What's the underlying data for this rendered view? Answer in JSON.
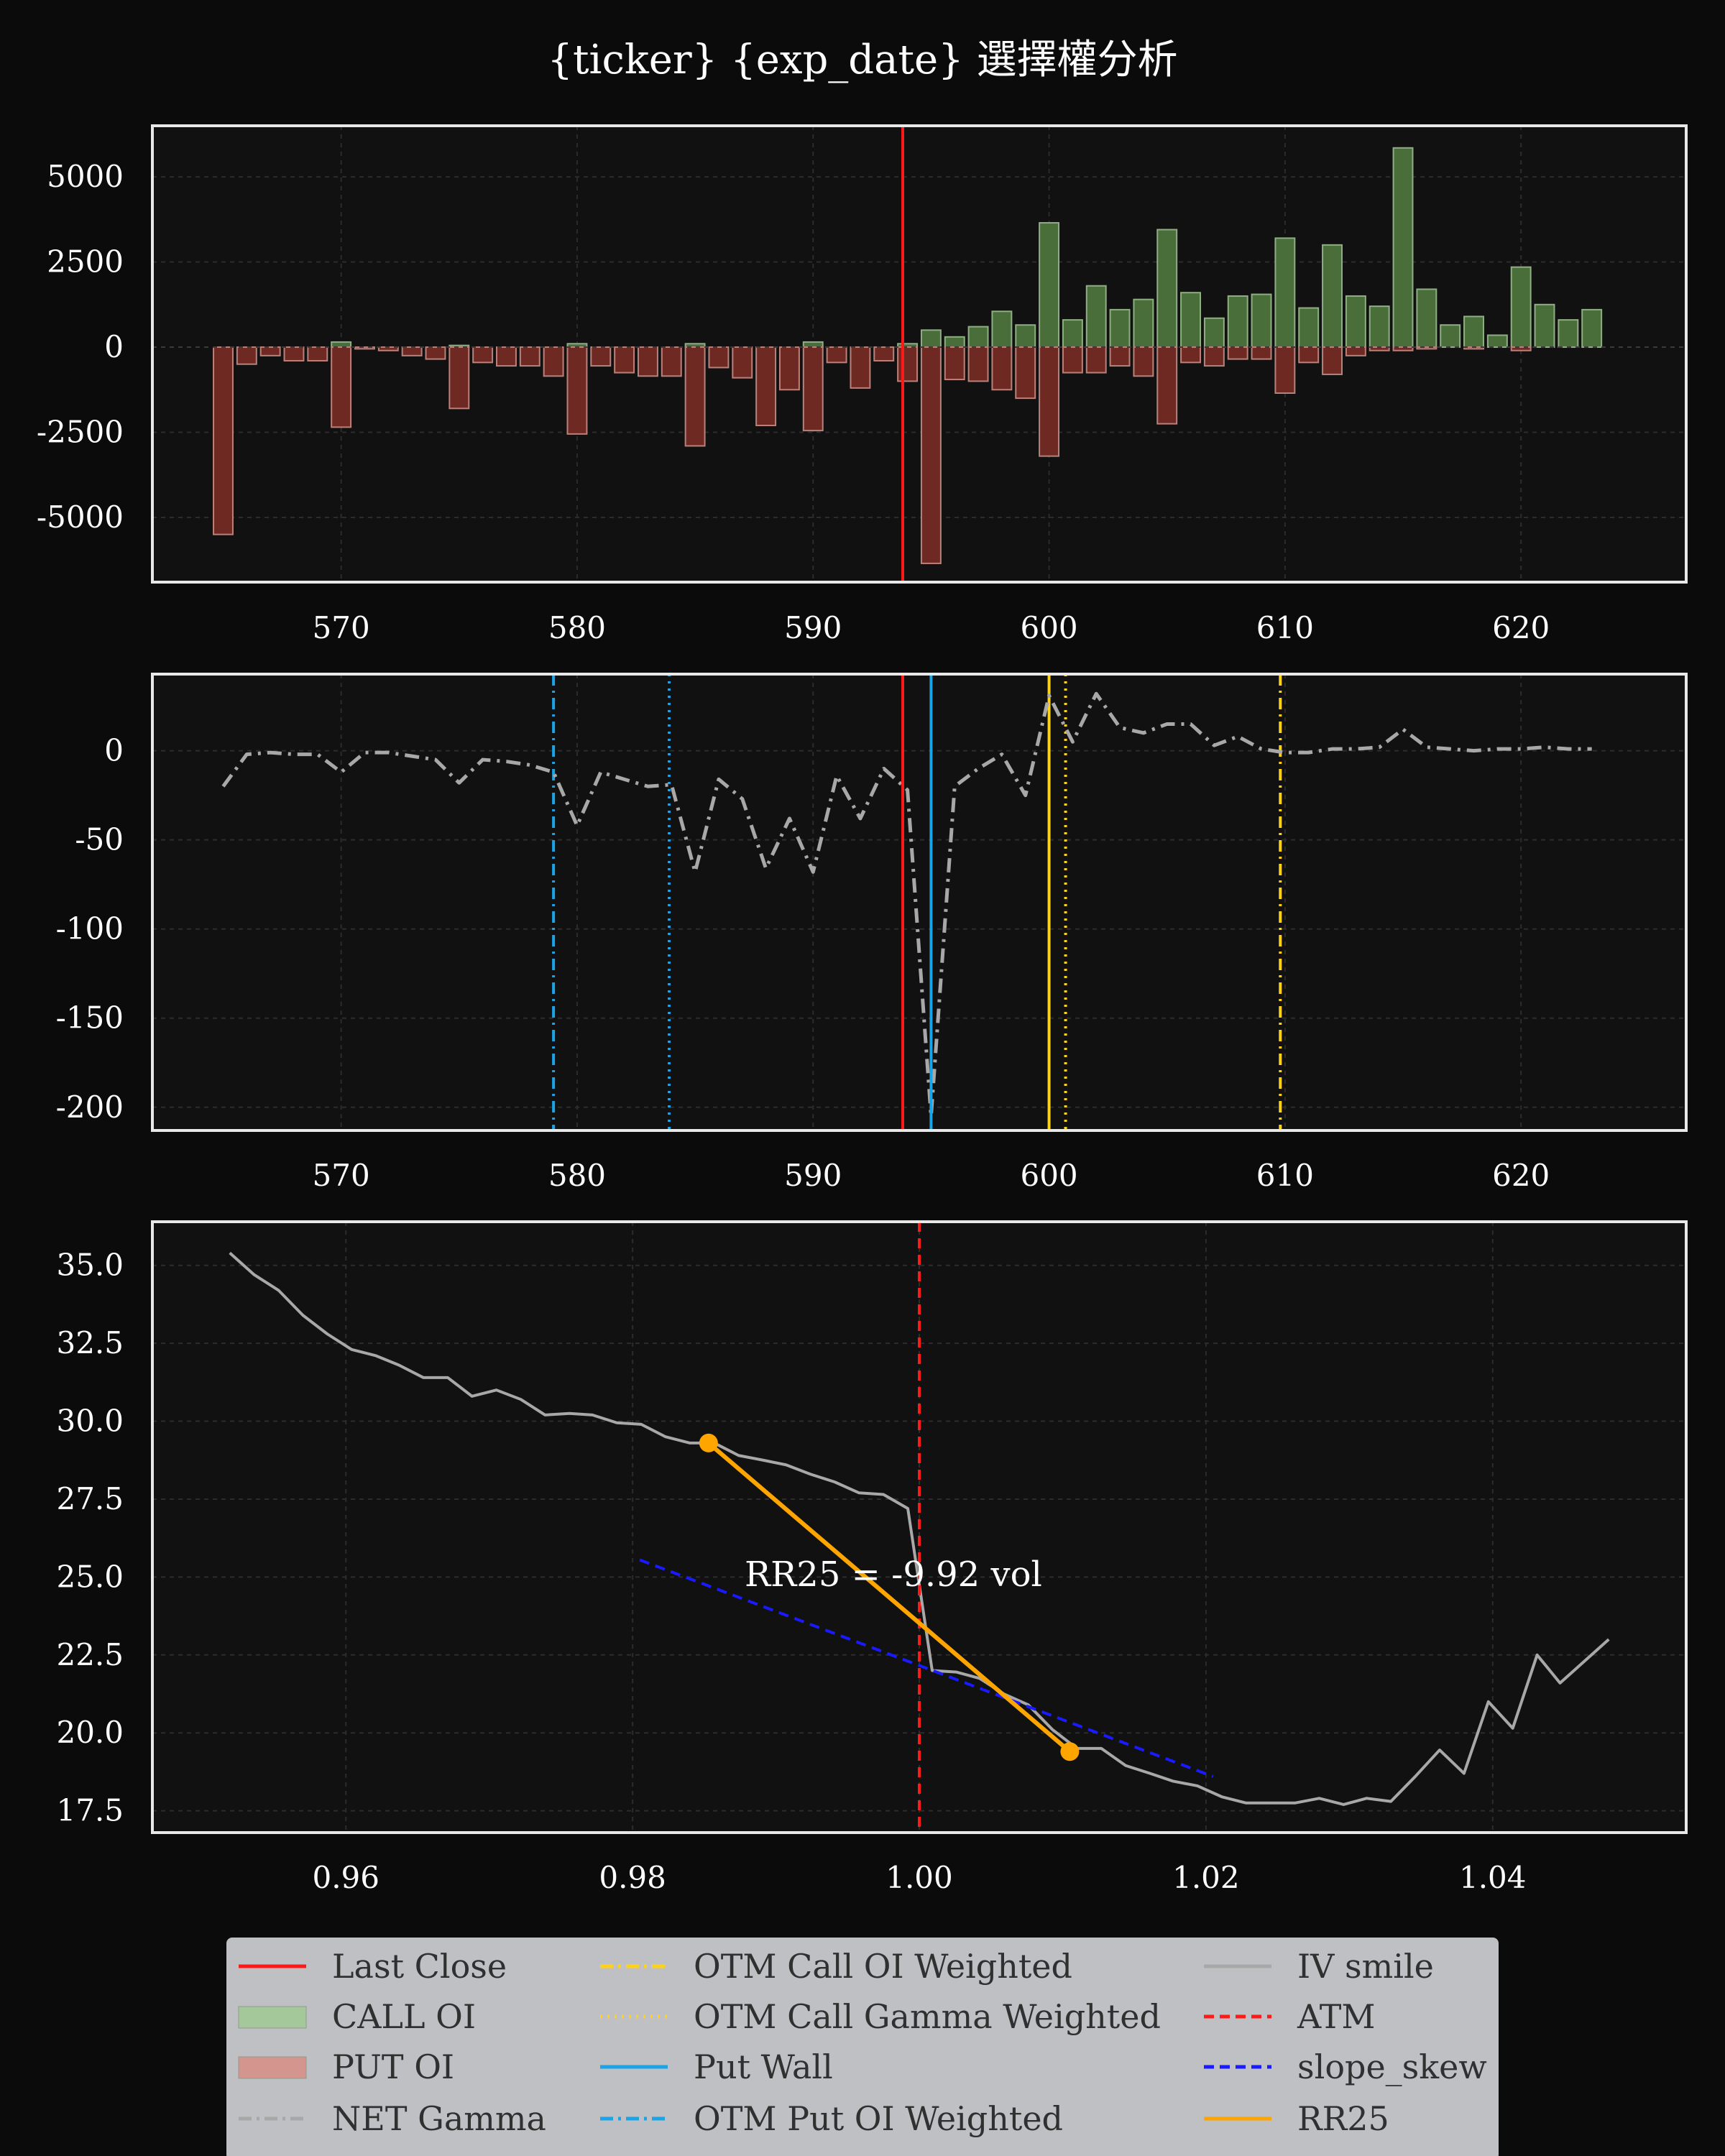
{
  "title": "{ticker} {exp_date} 選擇權分析",
  "colors": {
    "background": "#0b0b0b",
    "panel": "#111111",
    "call": "#4a6e3a",
    "put": "#6e2a22",
    "last_close": "#ff1a1a",
    "put_wall": "#1aa3e6",
    "call_wall": "#ffd21a",
    "net_gamma": "#a8a8a8",
    "iv_smile": "#a8a8a8",
    "atm": "#ff1a1a",
    "slope": "#1a1aff",
    "rr25": "#ffa500"
  },
  "chart_data": [
    {
      "type": "bar",
      "panel": "oi",
      "xlim": [
        562,
        627
      ],
      "ylim": [
        -6900,
        6500
      ],
      "x_ticks": [
        570,
        580,
        590,
        600,
        610,
        620
      ],
      "y_ticks": [
        5000,
        2500,
        0,
        -2500,
        -5000
      ],
      "x": [
        565,
        566,
        567,
        568,
        569,
        570,
        571,
        572,
        573,
        574,
        575,
        576,
        577,
        578,
        579,
        580,
        581,
        582,
        583,
        584,
        585,
        586,
        587,
        588,
        589,
        590,
        591,
        592,
        593,
        594,
        595,
        596,
        597,
        598,
        599,
        600,
        601,
        602,
        603,
        604,
        605,
        606,
        607,
        608,
        609,
        610,
        611,
        612,
        613,
        614,
        615,
        616,
        617,
        618,
        619,
        620,
        621,
        622,
        623
      ],
      "series": [
        {
          "name": "CALL OI",
          "values": [
            0,
            0,
            0,
            0,
            0,
            150,
            0,
            0,
            0,
            0,
            50,
            0,
            0,
            0,
            0,
            100,
            0,
            0,
            0,
            0,
            100,
            0,
            0,
            0,
            0,
            150,
            0,
            0,
            0,
            100,
            500,
            300,
            600,
            1050,
            650,
            3650,
            800,
            1800,
            1100,
            1400,
            3450,
            1600,
            850,
            1500,
            1550,
            3200,
            1150,
            3000,
            1500,
            1200,
            5850,
            1700,
            650,
            900,
            350,
            2350,
            1250,
            800,
            1100
          ]
        },
        {
          "name": "PUT OI",
          "values": [
            -5500,
            -500,
            -250,
            -400,
            -400,
            -2350,
            -50,
            -100,
            -250,
            -350,
            -1800,
            -450,
            -550,
            -550,
            -850,
            -2550,
            -550,
            -750,
            -850,
            -850,
            -2900,
            -600,
            -900,
            -2300,
            -1250,
            -2450,
            -450,
            -1200,
            -400,
            -1000,
            -6350,
            -950,
            -1000,
            -1250,
            -1500,
            -3200,
            -750,
            -750,
            -550,
            -850,
            -2250,
            -450,
            -550,
            -350,
            -350,
            -1350,
            -450,
            -800,
            -250,
            -100,
            -100,
            -50,
            0,
            -50,
            0,
            -100,
            0,
            0,
            0
          ]
        }
      ],
      "last_close": 593.8
    },
    {
      "type": "line",
      "panel": "gamma",
      "xlim": [
        562,
        627
      ],
      "ylim": [
        -213,
        43
      ],
      "x_ticks": [
        570,
        580,
        590,
        600,
        610,
        620
      ],
      "y_ticks": [
        0,
        -50,
        -100,
        -150,
        -200
      ],
      "series": [
        {
          "name": "NET Gamma",
          "x": [
            565,
            566,
            567,
            568,
            569,
            570,
            571,
            572,
            573,
            574,
            575,
            576,
            577,
            578,
            579,
            580,
            581,
            582,
            583,
            584,
            585,
            586,
            587,
            588,
            589,
            590,
            591,
            592,
            593,
            594,
            595,
            596,
            597,
            598,
            599,
            600,
            601,
            602,
            603,
            604,
            605,
            606,
            607,
            608,
            609,
            610,
            611,
            612,
            613,
            614,
            615,
            616,
            617,
            618,
            619,
            620,
            621,
            622,
            623
          ],
          "values": [
            -20,
            -2,
            -1,
            -2,
            -2,
            -12,
            -1,
            -1,
            -3,
            -5,
            -18,
            -5,
            -6,
            -8,
            -12,
            -42,
            -12,
            -16,
            -20,
            -19,
            -68,
            -16,
            -27,
            -66,
            -38,
            -68,
            -14,
            -38,
            -10,
            -22,
            -205,
            -20,
            -10,
            -2,
            -25,
            31,
            5,
            32,
            13,
            10,
            15,
            15,
            3,
            8,
            1,
            -1,
            -1,
            1,
            1,
            2,
            12,
            2,
            1,
            0,
            1,
            1,
            2,
            1,
            1
          ]
        }
      ],
      "last_close": 593.8,
      "put_wall": 595,
      "otm_put_oi_weighted": 579,
      "otm_put_gamma_weighted": 583.9,
      "call_wall": 600,
      "otm_call_gamma_weighted": 600.7,
      "otm_call_oi_weighted": 609.8
    },
    {
      "type": "line",
      "panel": "iv",
      "xlim": [
        0.9465,
        1.0535
      ],
      "ylim": [
        16.8,
        36.4
      ],
      "x_ticks": [
        0.96,
        0.98,
        1.0,
        1.02,
        1.04
      ],
      "y_ticks": [
        35.0,
        32.5,
        30.0,
        27.5,
        25.0,
        22.5,
        20.0,
        17.5
      ],
      "series": [
        {
          "name": "IV smile",
          "x": [
            0.9519,
            0.9536,
            0.9553,
            0.957,
            0.9587,
            0.9604,
            0.9621,
            0.9637,
            0.9654,
            0.9671,
            0.9688,
            0.9705,
            0.9722,
            0.9739,
            0.9756,
            0.9772,
            0.9789,
            0.9806,
            0.9823,
            0.984,
            0.9857,
            0.9874,
            0.9891,
            0.9907,
            0.9924,
            0.9941,
            0.9958,
            0.9975,
            0.9992,
            1.0009,
            1.0026,
            1.0042,
            1.0059,
            1.0076,
            1.0093,
            1.011,
            1.0127,
            1.0144,
            1.0161,
            1.0177,
            1.0194,
            1.0211,
            1.0228,
            1.0245,
            1.0262,
            1.0279,
            1.0296,
            1.0312,
            1.0329,
            1.0346,
            1.0363,
            1.038,
            1.0397,
            1.0414,
            1.0431,
            1.0447,
            1.0464,
            1.0481
          ],
          "values": [
            35.4,
            34.7,
            34.2,
            33.4,
            32.8,
            32.3,
            32.1,
            31.8,
            31.4,
            31.4,
            30.8,
            31.0,
            30.7,
            30.2,
            30.25,
            30.2,
            29.95,
            29.9,
            29.5,
            29.3,
            29.3,
            28.9,
            28.75,
            28.6,
            28.3,
            28.05,
            27.7,
            27.65,
            27.2,
            22.0,
            21.95,
            21.75,
            21.25,
            20.9,
            20.1,
            19.5,
            19.5,
            18.95,
            18.7,
            18.45,
            18.3,
            17.95,
            17.75,
            17.75,
            17.75,
            17.9,
            17.7,
            17.9,
            17.8,
            18.6,
            19.45,
            18.7,
            21.0,
            20.15,
            22.5,
            21.6,
            22.3,
            23.0
          ]
        },
        {
          "name": "slope_skew",
          "x": [
            0.9805,
            1.0205
          ],
          "values": [
            25.55,
            18.6
          ]
        },
        {
          "name": "RR25",
          "x": [
            0.9853,
            1.0105
          ],
          "values": [
            29.3,
            19.4
          ]
        }
      ],
      "atm": 1.0,
      "annotation": "RR25 = -9.92 vol"
    }
  ],
  "legend": {
    "items": [
      {
        "label": "Last Close",
        "style": "line",
        "color": "#ff1a1a"
      },
      {
        "label": "CALL OI",
        "style": "patch",
        "color": "#a4c89a"
      },
      {
        "label": "PUT OI",
        "style": "patch",
        "color": "#d4958e"
      },
      {
        "label": "NET Gamma",
        "style": "dashdot",
        "color": "#a8a8a8"
      },
      {
        "label": "OTM Call OI Weighted",
        "style": "dashdot",
        "color": "#ffd21a"
      },
      {
        "label": "OTM Call Gamma Weighted",
        "style": "dotted",
        "color": "#ffd21a"
      },
      {
        "label": "Put Wall",
        "style": "line",
        "color": "#1aa3e6"
      },
      {
        "label": "OTM Put OI Weighted",
        "style": "dashdot",
        "color": "#1aa3e6"
      },
      {
        "label": "IV smile",
        "style": "line",
        "color": "#a8a8a8"
      },
      {
        "label": "ATM",
        "style": "dashed",
        "color": "#ff1a1a"
      },
      {
        "label": "slope_skew",
        "style": "dashed",
        "color": "#1a1aff"
      },
      {
        "label": "RR25",
        "style": "line",
        "color": "#ffa500"
      }
    ]
  }
}
